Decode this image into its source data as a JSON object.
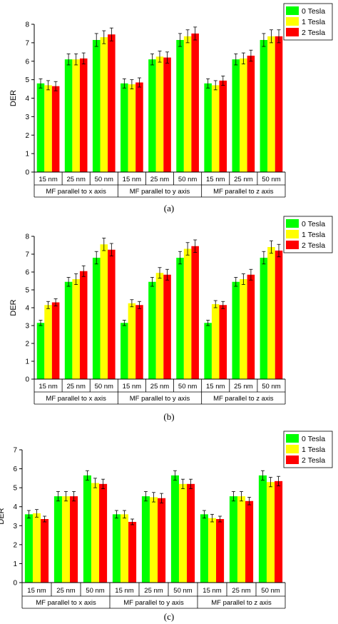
{
  "colors": {
    "0 Tesla": "#00ff00",
    "1 Tesla": "#ffff00",
    "2 Tesla": "#ff0000"
  },
  "chart_data": [
    {
      "type": "bar",
      "caption": "(a)",
      "ylabel": "DER",
      "xlabel": "",
      "ylim": [
        0,
        8
      ],
      "yticks": [
        0,
        1,
        2,
        3,
        4,
        5,
        6,
        7,
        8
      ],
      "grid": false,
      "legend": "top-right",
      "categories": [
        "15 nm",
        "25 nm",
        "50 nm",
        "15 nm",
        "25 nm",
        "50 nm",
        "15 nm",
        "25 nm",
        "50 nm"
      ],
      "groups": [
        "MF parallel to x axis",
        "MF parallel to y axis",
        "MF parallel to z axis"
      ],
      "series": [
        {
          "name": "0 Tesla",
          "values": [
            4.8,
            6.1,
            7.15,
            4.8,
            6.1,
            7.15,
            4.8,
            6.1,
            7.15
          ],
          "errors": [
            0.25,
            0.3,
            0.35,
            0.25,
            0.3,
            0.35,
            0.25,
            0.3,
            0.35
          ]
        },
        {
          "name": "1 Tesla",
          "values": [
            4.7,
            6.1,
            7.3,
            4.75,
            6.25,
            7.35,
            4.7,
            6.15,
            7.35
          ],
          "errors": [
            0.25,
            0.3,
            0.35,
            0.25,
            0.3,
            0.35,
            0.25,
            0.3,
            0.35
          ]
        },
        {
          "name": "2 Tesla",
          "values": [
            4.65,
            6.15,
            7.45,
            4.85,
            6.2,
            7.5,
            4.95,
            6.3,
            7.35
          ],
          "errors": [
            0.25,
            0.3,
            0.35,
            0.25,
            0.3,
            0.35,
            0.25,
            0.3,
            0.35
          ]
        }
      ]
    },
    {
      "type": "bar",
      "caption": "(b)",
      "ylabel": "DER",
      "xlabel": "",
      "ylim": [
        0,
        8
      ],
      "yticks": [
        0,
        1,
        2,
        3,
        4,
        5,
        6,
        7,
        8
      ],
      "grid": false,
      "legend": "top-right",
      "categories": [
        "15 nm",
        "25 nm",
        "50 nm",
        "15 nm",
        "25 nm",
        "50 nm",
        "15 nm",
        "25 nm",
        "50 nm"
      ],
      "groups": [
        "MF parallel to x axis",
        "MF parallel to y axis",
        "MF parallel to z axis"
      ],
      "series": [
        {
          "name": "0 Tesla",
          "values": [
            3.15,
            5.45,
            6.8,
            3.15,
            5.45,
            6.8,
            3.15,
            5.45,
            6.8
          ],
          "errors": [
            0.15,
            0.25,
            0.35,
            0.15,
            0.25,
            0.35,
            0.15,
            0.25,
            0.35
          ]
        },
        {
          "name": "1 Tesla",
          "values": [
            4.15,
            5.6,
            7.55,
            4.25,
            5.95,
            7.3,
            4.2,
            5.6,
            7.4
          ],
          "errors": [
            0.2,
            0.3,
            0.35,
            0.2,
            0.3,
            0.35,
            0.2,
            0.3,
            0.35
          ]
        },
        {
          "name": "2 Tesla",
          "values": [
            4.3,
            6.05,
            7.25,
            4.15,
            5.85,
            7.45,
            4.15,
            5.85,
            7.2
          ],
          "errors": [
            0.2,
            0.3,
            0.35,
            0.2,
            0.3,
            0.35,
            0.2,
            0.3,
            0.35
          ]
        }
      ]
    },
    {
      "type": "bar",
      "caption": "(c)",
      "ylabel": "DER",
      "xlabel": "",
      "ylim": [
        0,
        7
      ],
      "yticks": [
        0,
        1,
        2,
        3,
        4,
        5,
        6,
        7
      ],
      "grid": false,
      "legend": "top-right",
      "categories": [
        "15 nm",
        "25 nm",
        "50 nm",
        "15 nm",
        "25 nm",
        "50 nm",
        "15 nm",
        "25 nm",
        "50 nm"
      ],
      "groups": [
        "MF parallel to x axis",
        "MF parallel to y axis",
        "MF parallel to z axis"
      ],
      "series": [
        {
          "name": "0 Tesla",
          "values": [
            3.6,
            4.55,
            5.65,
            3.6,
            4.55,
            5.65,
            3.6,
            4.55,
            5.65
          ],
          "errors": [
            0.2,
            0.25,
            0.25,
            0.2,
            0.25,
            0.25,
            0.2,
            0.25,
            0.25
          ]
        },
        {
          "name": "1 Tesla",
          "values": [
            3.65,
            4.55,
            5.25,
            3.6,
            4.5,
            5.2,
            3.4,
            4.55,
            5.3
          ],
          "errors": [
            0.2,
            0.25,
            0.25,
            0.2,
            0.25,
            0.25,
            0.2,
            0.25,
            0.25
          ]
        },
        {
          "name": "2 Tesla",
          "values": [
            3.35,
            4.55,
            5.2,
            3.2,
            4.45,
            5.2,
            3.35,
            4.3,
            5.35
          ],
          "errors": [
            0.15,
            0.25,
            0.25,
            0.15,
            0.25,
            0.25,
            0.15,
            0.2,
            0.25
          ]
        }
      ]
    }
  ]
}
